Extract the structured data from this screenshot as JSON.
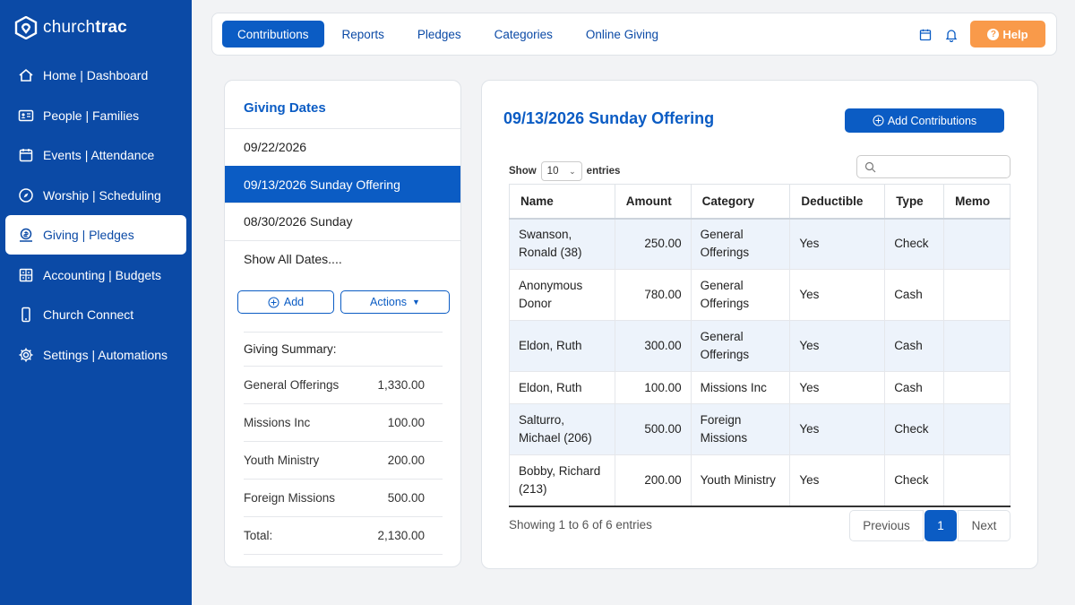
{
  "brand": {
    "name_part1": "church",
    "name_part2": "trac"
  },
  "sidebar": {
    "items": [
      {
        "label": "Home | Dashboard",
        "icon": "home-icon",
        "active": false
      },
      {
        "label": "People | Families",
        "icon": "id-card-icon",
        "active": false
      },
      {
        "label": "Events | Attendance",
        "icon": "calendar-icon",
        "active": false
      },
      {
        "label": "Worship | Scheduling",
        "icon": "compass-icon",
        "active": false
      },
      {
        "label": "Giving | Pledges",
        "icon": "money-icon",
        "active": true
      },
      {
        "label": "Accounting | Budgets",
        "icon": "ledger-icon",
        "active": false
      },
      {
        "label": "Church Connect",
        "icon": "mobile-icon",
        "active": false
      },
      {
        "label": "Settings | Automations",
        "icon": "gear-icon",
        "active": false
      }
    ]
  },
  "topbar": {
    "tabs": [
      {
        "label": "Contributions",
        "active": true
      },
      {
        "label": "Reports",
        "active": false
      },
      {
        "label": "Pledges",
        "active": false
      },
      {
        "label": "Categories",
        "active": false
      },
      {
        "label": "Online Giving",
        "active": false
      }
    ],
    "help_label": "Help"
  },
  "giving_dates": {
    "title": "Giving Dates",
    "dates": [
      {
        "label": "09/22/2026",
        "active": false
      },
      {
        "label": "09/13/2026 Sunday Offering",
        "active": true
      },
      {
        "label": "08/30/2026 Sunday",
        "active": false
      }
    ],
    "show_all_label": "Show All Dates....",
    "add_label": "Add",
    "actions_label": "Actions"
  },
  "summary": {
    "title": "Giving Summary:",
    "rows": [
      {
        "label": "General Offerings",
        "value": "1,330.00"
      },
      {
        "label": "Missions Inc",
        "value": "100.00"
      },
      {
        "label": "Youth Ministry",
        "value": "200.00"
      },
      {
        "label": "Foreign Missions",
        "value": "500.00"
      },
      {
        "label": "Total:",
        "value": "2,130.00"
      }
    ]
  },
  "main": {
    "title": "09/13/2026 Sunday Offering",
    "add_contributions_label": "Add Contributions",
    "show_label": "Show",
    "entries_label": "entries",
    "page_size": "10",
    "search_placeholder": "",
    "columns": [
      "Name",
      "Amount",
      "Category",
      "Deductible",
      "Type",
      "Memo"
    ],
    "rows": [
      {
        "name": "Swanson, Ronald (38)",
        "amount": "250.00",
        "category": "General Offerings",
        "deductible": "Yes",
        "type": "Check",
        "memo": ""
      },
      {
        "name": "Anonymous Donor",
        "amount": "780.00",
        "category": "General Offerings",
        "deductible": "Yes",
        "type": "Cash",
        "memo": ""
      },
      {
        "name": "Eldon, Ruth",
        "amount": "300.00",
        "category": "General Offerings",
        "deductible": "Yes",
        "type": "Cash",
        "memo": ""
      },
      {
        "name": "Eldon, Ruth",
        "amount": "100.00",
        "category": "Missions Inc",
        "deductible": "Yes",
        "type": "Cash",
        "memo": ""
      },
      {
        "name": "Salturro, Michael (206)",
        "amount": "500.00",
        "category": "Foreign Missions",
        "deductible": "Yes",
        "type": "Check",
        "memo": ""
      },
      {
        "name": "Bobby, Richard (213)",
        "amount": "200.00",
        "category": "Youth Ministry",
        "deductible": "Yes",
        "type": "Check",
        "memo": ""
      }
    ],
    "info": "Showing 1 to 6 of 6 entries",
    "pager": {
      "previous": "Previous",
      "current": "1",
      "next": "Next"
    }
  },
  "colors": {
    "primary": "#0b5cc4",
    "sidebar": "#0b4aa6",
    "help": "#f99a4a",
    "row_alt": "#edf3fb"
  }
}
